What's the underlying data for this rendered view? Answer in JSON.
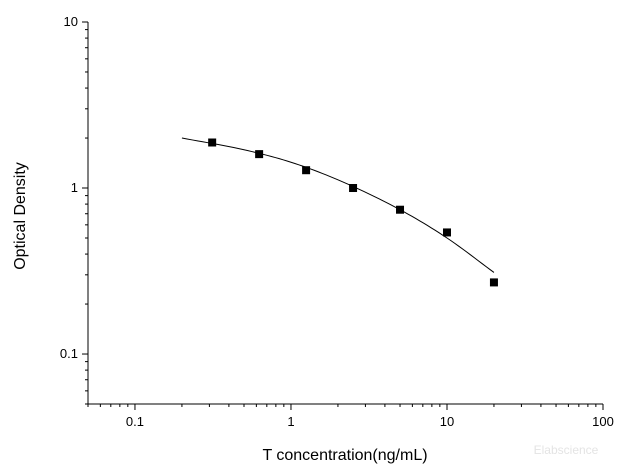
{
  "chart_data": {
    "type": "scatter",
    "title": "",
    "xlabel": "T concentration(ng/mL)",
    "ylabel": "Optical Density",
    "x_scale": "log",
    "y_scale": "log",
    "xlim": [
      0.05,
      100
    ],
    "ylim": [
      0.05,
      10
    ],
    "x_ticks": [
      {
        "value": 0.1,
        "label": "0.1"
      },
      {
        "value": 1,
        "label": "1"
      },
      {
        "value": 10,
        "label": "10"
      },
      {
        "value": 100,
        "label": "100"
      }
    ],
    "y_ticks": [
      {
        "value": 0.1,
        "label": "0.1"
      },
      {
        "value": 1,
        "label": "1"
      },
      {
        "value": 10,
        "label": "10"
      }
    ],
    "grid": false,
    "legend": "none",
    "series": [
      {
        "marker": "square",
        "color": "#000000",
        "points": [
          {
            "x": 0.3125,
            "y": 1.88
          },
          {
            "x": 0.625,
            "y": 1.6
          },
          {
            "x": 1.25,
            "y": 1.28
          },
          {
            "x": 2.5,
            "y": 1.0
          },
          {
            "x": 5,
            "y": 0.74
          },
          {
            "x": 10,
            "y": 0.54
          },
          {
            "x": 20,
            "y": 0.27
          }
        ]
      }
    ],
    "fit_curve": {
      "color": "#000000",
      "points": [
        {
          "x": 0.2,
          "y": 2.0
        },
        {
          "x": 0.5,
          "y": 1.7
        },
        {
          "x": 1,
          "y": 1.43
        },
        {
          "x": 2,
          "y": 1.12
        },
        {
          "x": 5,
          "y": 0.74
        },
        {
          "x": 10,
          "y": 0.5
        },
        {
          "x": 20,
          "y": 0.31
        }
      ]
    }
  },
  "watermark": "Elabscience"
}
